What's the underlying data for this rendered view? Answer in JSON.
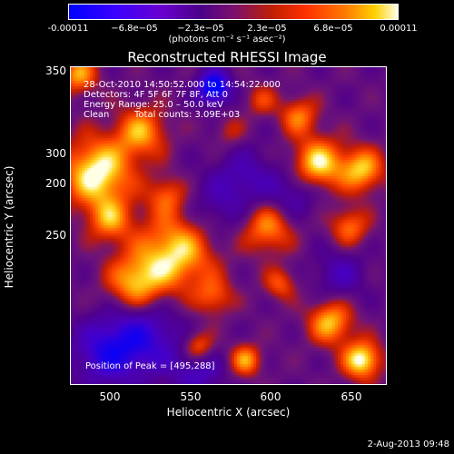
{
  "colorbar": {
    "ticks": [
      "-0.00011",
      "−6.8e−05",
      "−2.3e−05",
      "2.3e−05",
      "6.8e−05",
      "0.00011"
    ],
    "units": "(photons cm⁻² s⁻¹ asec⁻²)",
    "range": [
      -0.00011,
      0.00011
    ]
  },
  "chart_data": {
    "type": "heatmap",
    "title": "Reconstructed RHESSI Image",
    "xlabel": "Heliocentric X (arcsec)",
    "ylabel": "Heliocentric Y (arcsec)",
    "xlim": [
      475,
      670
    ],
    "ylim": [
      155,
      353
    ],
    "x_ticks": [
      "500",
      "550",
      "600",
      "650"
    ],
    "y_ticks": [
      "200",
      "250",
      "300",
      "350"
    ],
    "annotations": {
      "time": "28-Oct-2010 14:50:52.000 to 14:54:22.000",
      "detectors": "Detectors: 4F 5F 6F 7F 8F, Att 0",
      "energy": "Energy Range: 25.0 – 50.0 keV",
      "method": "Clean",
      "counts": "Total counts: 3.09E+03",
      "peak": "Position of Peak = [495,288]"
    },
    "peak": {
      "x": 495,
      "y": 288
    }
  },
  "footer": "2-Aug-2013 09:48"
}
